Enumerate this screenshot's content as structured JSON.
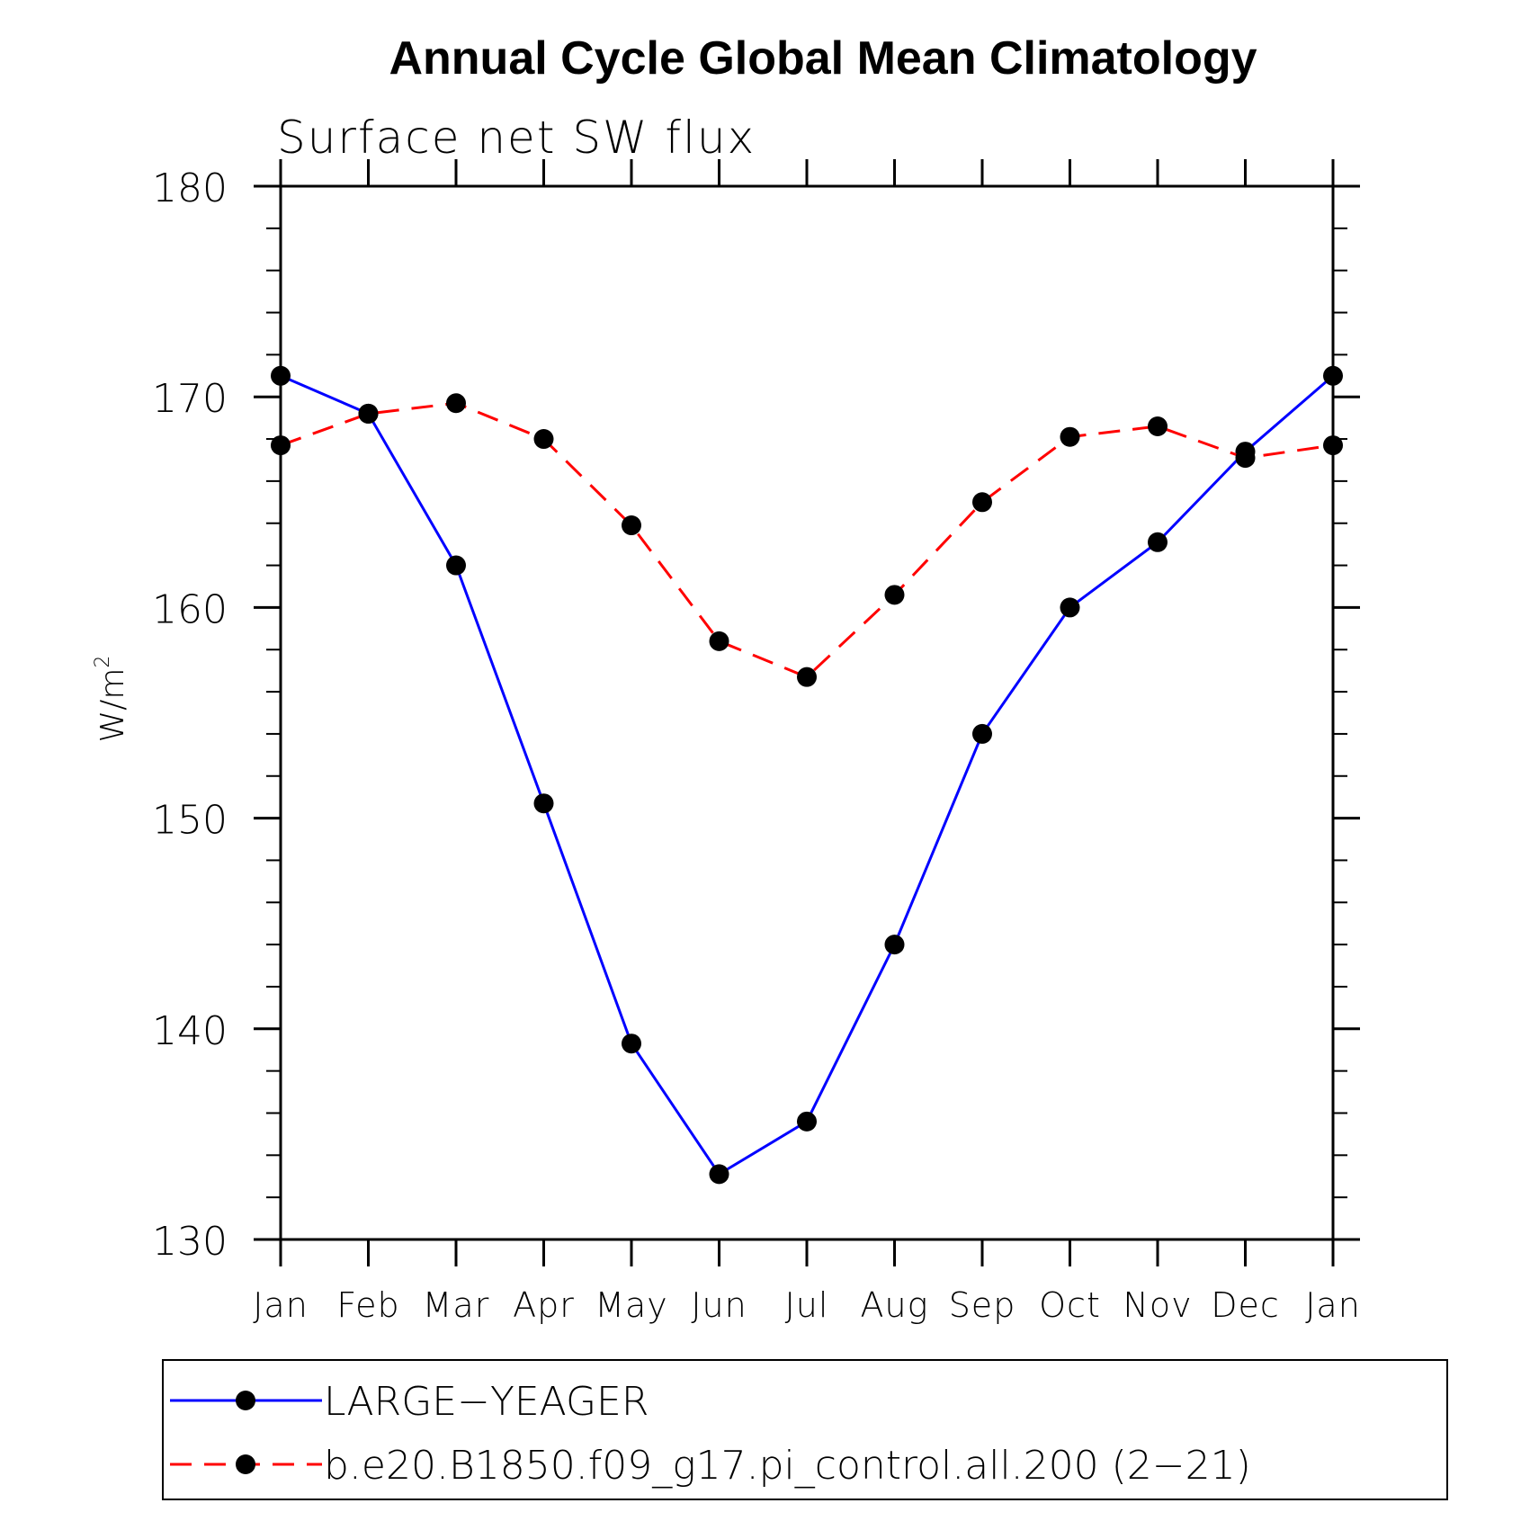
{
  "chart_data": {
    "type": "line",
    "title": "Annual Cycle Global Mean Climatology",
    "subtitle": "Surface net SW flux",
    "ylabel": "W/m",
    "ylabel_exponent": "2",
    "categories": [
      "Jan",
      "Feb",
      "Mar",
      "Apr",
      "May",
      "Jun",
      "Jul",
      "Aug",
      "Sep",
      "Oct",
      "Nov",
      "Dec",
      "Jan"
    ],
    "ylim": [
      130,
      180
    ],
    "yticks": [
      "130",
      "140",
      "150",
      "160",
      "170",
      "180"
    ],
    "grid": false,
    "legend_position": "bottom",
    "series": [
      {
        "name": "LARGE−YEAGER",
        "color": "#0000ff",
        "linestyle": "solid",
        "marker": "filled-circle",
        "values": [
          171.0,
          169.2,
          162.0,
          150.7,
          139.3,
          133.1,
          135.6,
          144.0,
          154.0,
          160.0,
          163.1,
          167.4,
          171.0
        ]
      },
      {
        "name": "b.e20.B1850.f09_g17.pi_control.all.200 (2−21)",
        "color": "#ff0000",
        "linestyle": "dashed",
        "marker": "filled-circle",
        "values": [
          167.7,
          169.2,
          169.7,
          168.0,
          163.9,
          158.4,
          156.7,
          160.6,
          165.0,
          168.1,
          168.6,
          167.1,
          167.7
        ]
      }
    ]
  }
}
